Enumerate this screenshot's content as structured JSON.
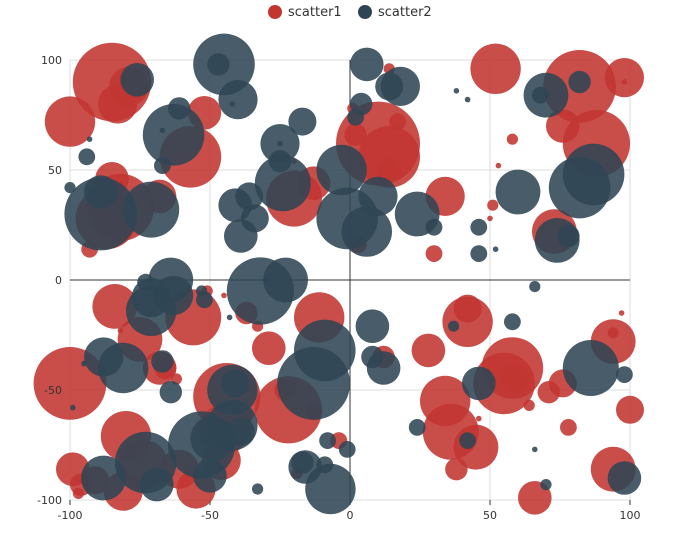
{
  "chart_data": {
    "type": "scatter",
    "title": "",
    "xlabel": "",
    "ylabel": "",
    "xlim": [
      -100,
      100
    ],
    "ylim": [
      -100,
      100
    ],
    "x_ticks": [
      "-100",
      "-50",
      "0",
      "50",
      "100"
    ],
    "y_ticks": [
      "100",
      "50",
      "0",
      "-50",
      "-100"
    ],
    "grid": true,
    "legend_position": "top-center",
    "series": [
      {
        "name": "scatter1",
        "color": "#c23531",
        "points": [
          [
            -85,
            90,
            14
          ],
          [
            -83,
            80,
            7
          ],
          [
            -79,
            88,
            7
          ],
          [
            -100,
            72,
            9
          ],
          [
            -52,
            76,
            6
          ],
          [
            -57,
            56,
            11
          ],
          [
            -85,
            46,
            6
          ],
          [
            -68,
            38,
            6
          ],
          [
            -82,
            33,
            12
          ],
          [
            -87,
            28,
            11
          ],
          [
            -93,
            14,
            3
          ],
          [
            -20,
            37,
            10
          ],
          [
            -13,
            44,
            6
          ],
          [
            -20,
            54,
            1
          ],
          [
            1,
            78,
            2
          ],
          [
            2,
            66,
            4
          ],
          [
            10,
            62,
            15
          ],
          [
            14,
            56,
            11
          ],
          [
            14,
            50,
            4
          ],
          [
            17,
            72,
            3
          ],
          [
            14,
            96,
            2
          ],
          [
            3,
            16,
            3
          ],
          [
            34,
            38,
            7
          ],
          [
            30,
            12,
            3
          ],
          [
            51,
            34,
            2
          ],
          [
            50,
            28,
            1
          ],
          [
            53,
            52,
            1
          ],
          [
            58,
            64,
            2
          ],
          [
            52,
            96,
            9
          ],
          [
            76,
            70,
            6
          ],
          [
            73,
            22,
            8
          ],
          [
            82,
            88,
            13
          ],
          [
            88,
            62,
            12
          ],
          [
            98,
            92,
            7
          ],
          [
            98,
            90,
            1
          ],
          [
            -84,
            -12,
            8
          ],
          [
            -82,
            -23,
            1
          ],
          [
            -75,
            -27,
            8
          ],
          [
            -68,
            -40,
            6
          ],
          [
            -66,
            -40,
            4
          ],
          [
            -62,
            -45,
            2
          ],
          [
            -56,
            -17,
            10
          ],
          [
            -51,
            -5,
            2
          ],
          [
            -45,
            -7,
            1
          ],
          [
            -37,
            -15,
            4
          ],
          [
            -33,
            -21,
            2
          ],
          [
            -29,
            -31,
            6
          ],
          [
            -100,
            -47,
            13
          ],
          [
            -44,
            -53,
            12
          ],
          [
            -23,
            -50,
            4
          ],
          [
            -13,
            -60,
            3
          ],
          [
            -11,
            -17,
            9
          ],
          [
            12,
            -35,
            4
          ],
          [
            28,
            -32,
            6
          ],
          [
            42,
            -19,
            9
          ],
          [
            42,
            -13,
            5
          ],
          [
            46,
            -63,
            1
          ],
          [
            55,
            -47,
            11
          ],
          [
            58,
            -40,
            11
          ],
          [
            59,
            -45,
            5
          ],
          [
            64,
            -57,
            2
          ],
          [
            71,
            -51,
            4
          ],
          [
            76,
            -47,
            5
          ],
          [
            78,
            -67,
            3
          ],
          [
            94,
            -24,
            2
          ],
          [
            94,
            -28,
            8
          ],
          [
            97,
            -15,
            1
          ],
          [
            100,
            -59,
            5
          ],
          [
            -80,
            -71,
            9
          ],
          [
            -96,
            -93,
            4
          ],
          [
            -99,
            -86,
            6
          ],
          [
            -97,
            -97,
            2
          ],
          [
            -91,
            -91,
            5
          ],
          [
            -81,
            -96,
            7
          ],
          [
            -74,
            -84,
            9
          ],
          [
            -61,
            -86,
            7
          ],
          [
            -55,
            -95,
            7
          ],
          [
            -46,
            -82,
            7
          ],
          [
            -40,
            -62,
            5
          ],
          [
            -45,
            -68,
            9
          ],
          [
            -22,
            -59,
            12
          ],
          [
            -19,
            -88,
            2
          ],
          [
            -4,
            -73,
            3
          ],
          [
            34,
            -55,
            9
          ],
          [
            36,
            -69,
            10
          ],
          [
            38,
            -86,
            4
          ],
          [
            45,
            -76,
            8
          ],
          [
            66,
            -99,
            6
          ],
          [
            94,
            -86,
            8
          ]
        ]
      },
      {
        "name": "scatter2",
        "color": "#2f4554",
        "points": [
          [
            -94,
            56,
            3
          ],
          [
            -93,
            64,
            1
          ],
          [
            -100,
            42,
            2
          ],
          [
            -89,
            40,
            6
          ],
          [
            -76,
            91,
            6
          ],
          [
            -61,
            78,
            4
          ],
          [
            -63,
            66,
            11
          ],
          [
            -67,
            68,
            1
          ],
          [
            -67,
            52,
            3
          ],
          [
            -71,
            32,
            10
          ],
          [
            -89,
            30,
            13
          ],
          [
            -45,
            98,
            11
          ],
          [
            -42,
            80,
            1
          ],
          [
            -40,
            82,
            7
          ],
          [
            -47,
            98,
            4
          ],
          [
            -25,
            62,
            7
          ],
          [
            -25,
            54,
            4
          ],
          [
            -17,
            72,
            5
          ],
          [
            -24,
            44,
            10
          ],
          [
            -3,
            50,
            9
          ],
          [
            -36,
            38,
            5
          ],
          [
            -34,
            28,
            5
          ],
          [
            -41,
            34,
            6
          ],
          [
            -39,
            20,
            6
          ],
          [
            -25,
            62,
            1
          ],
          [
            2,
            74,
            3
          ],
          [
            4,
            80,
            4
          ],
          [
            6,
            98,
            6
          ],
          [
            14,
            88,
            5
          ],
          [
            18,
            88,
            7
          ],
          [
            10,
            38,
            7
          ],
          [
            -1,
            28,
            11
          ],
          [
            6,
            22,
            9
          ],
          [
            24,
            30,
            8
          ],
          [
            30,
            24,
            3
          ],
          [
            46,
            24,
            3
          ],
          [
            46,
            12,
            3
          ],
          [
            52,
            14,
            1
          ],
          [
            60,
            40,
            8
          ],
          [
            70,
            84,
            8
          ],
          [
            68,
            84,
            3
          ],
          [
            78,
            20,
            4
          ],
          [
            74,
            18,
            8
          ],
          [
            82,
            90,
            4
          ],
          [
            82,
            42,
            11
          ],
          [
            87,
            48,
            11
          ],
          [
            42,
            82,
            1
          ],
          [
            38,
            86,
            1
          ],
          [
            -71,
            -8,
            7
          ],
          [
            -71,
            -14,
            9
          ],
          [
            -73,
            -1,
            3
          ],
          [
            -63,
            -7,
            7
          ],
          [
            -64,
            0,
            8
          ],
          [
            -53,
            -5,
            2
          ],
          [
            -52,
            -9,
            3
          ],
          [
            -43,
            -17,
            1
          ],
          [
            -32,
            -5,
            12
          ],
          [
            -23,
            0,
            8
          ],
          [
            -9,
            -32,
            11
          ],
          [
            -13,
            -47,
            13
          ],
          [
            8,
            -21,
            6
          ],
          [
            8,
            -35,
            4
          ],
          [
            12,
            -40,
            6
          ],
          [
            37,
            -21,
            2
          ],
          [
            46,
            -47,
            6
          ],
          [
            58,
            -19,
            3
          ],
          [
            66,
            -3,
            2
          ],
          [
            86,
            -40,
            10
          ],
          [
            98,
            -43,
            3
          ],
          [
            -88,
            -35,
            7
          ],
          [
            -81,
            -40,
            9
          ],
          [
            -95,
            -38,
            1
          ],
          [
            -99,
            -58,
            1
          ],
          [
            -73,
            -83,
            11
          ],
          [
            -88,
            -90,
            8
          ],
          [
            -69,
            -93,
            6
          ],
          [
            -64,
            -51,
            4
          ],
          [
            -67,
            -37,
            4
          ],
          [
            -53,
            -75,
            12
          ],
          [
            -50,
            -89,
            6
          ],
          [
            -49,
            -72,
            8
          ],
          [
            -42,
            -66,
            9
          ],
          [
            -39,
            -69,
            5
          ],
          [
            -42,
            -50,
            9
          ],
          [
            -41,
            -47,
            5
          ],
          [
            -33,
            -95,
            2
          ],
          [
            -17,
            -83,
            4
          ],
          [
            -16,
            -85,
            6
          ],
          [
            -9,
            -84,
            3
          ],
          [
            -7,
            -95,
            9
          ],
          [
            -8,
            -73,
            3
          ],
          [
            -1,
            -77,
            3
          ],
          [
            24,
            -67,
            3
          ],
          [
            42,
            -73,
            3
          ],
          [
            66,
            -77,
            1
          ],
          [
            70,
            -93,
            2
          ],
          [
            98,
            -90,
            6
          ]
        ]
      }
    ]
  }
}
